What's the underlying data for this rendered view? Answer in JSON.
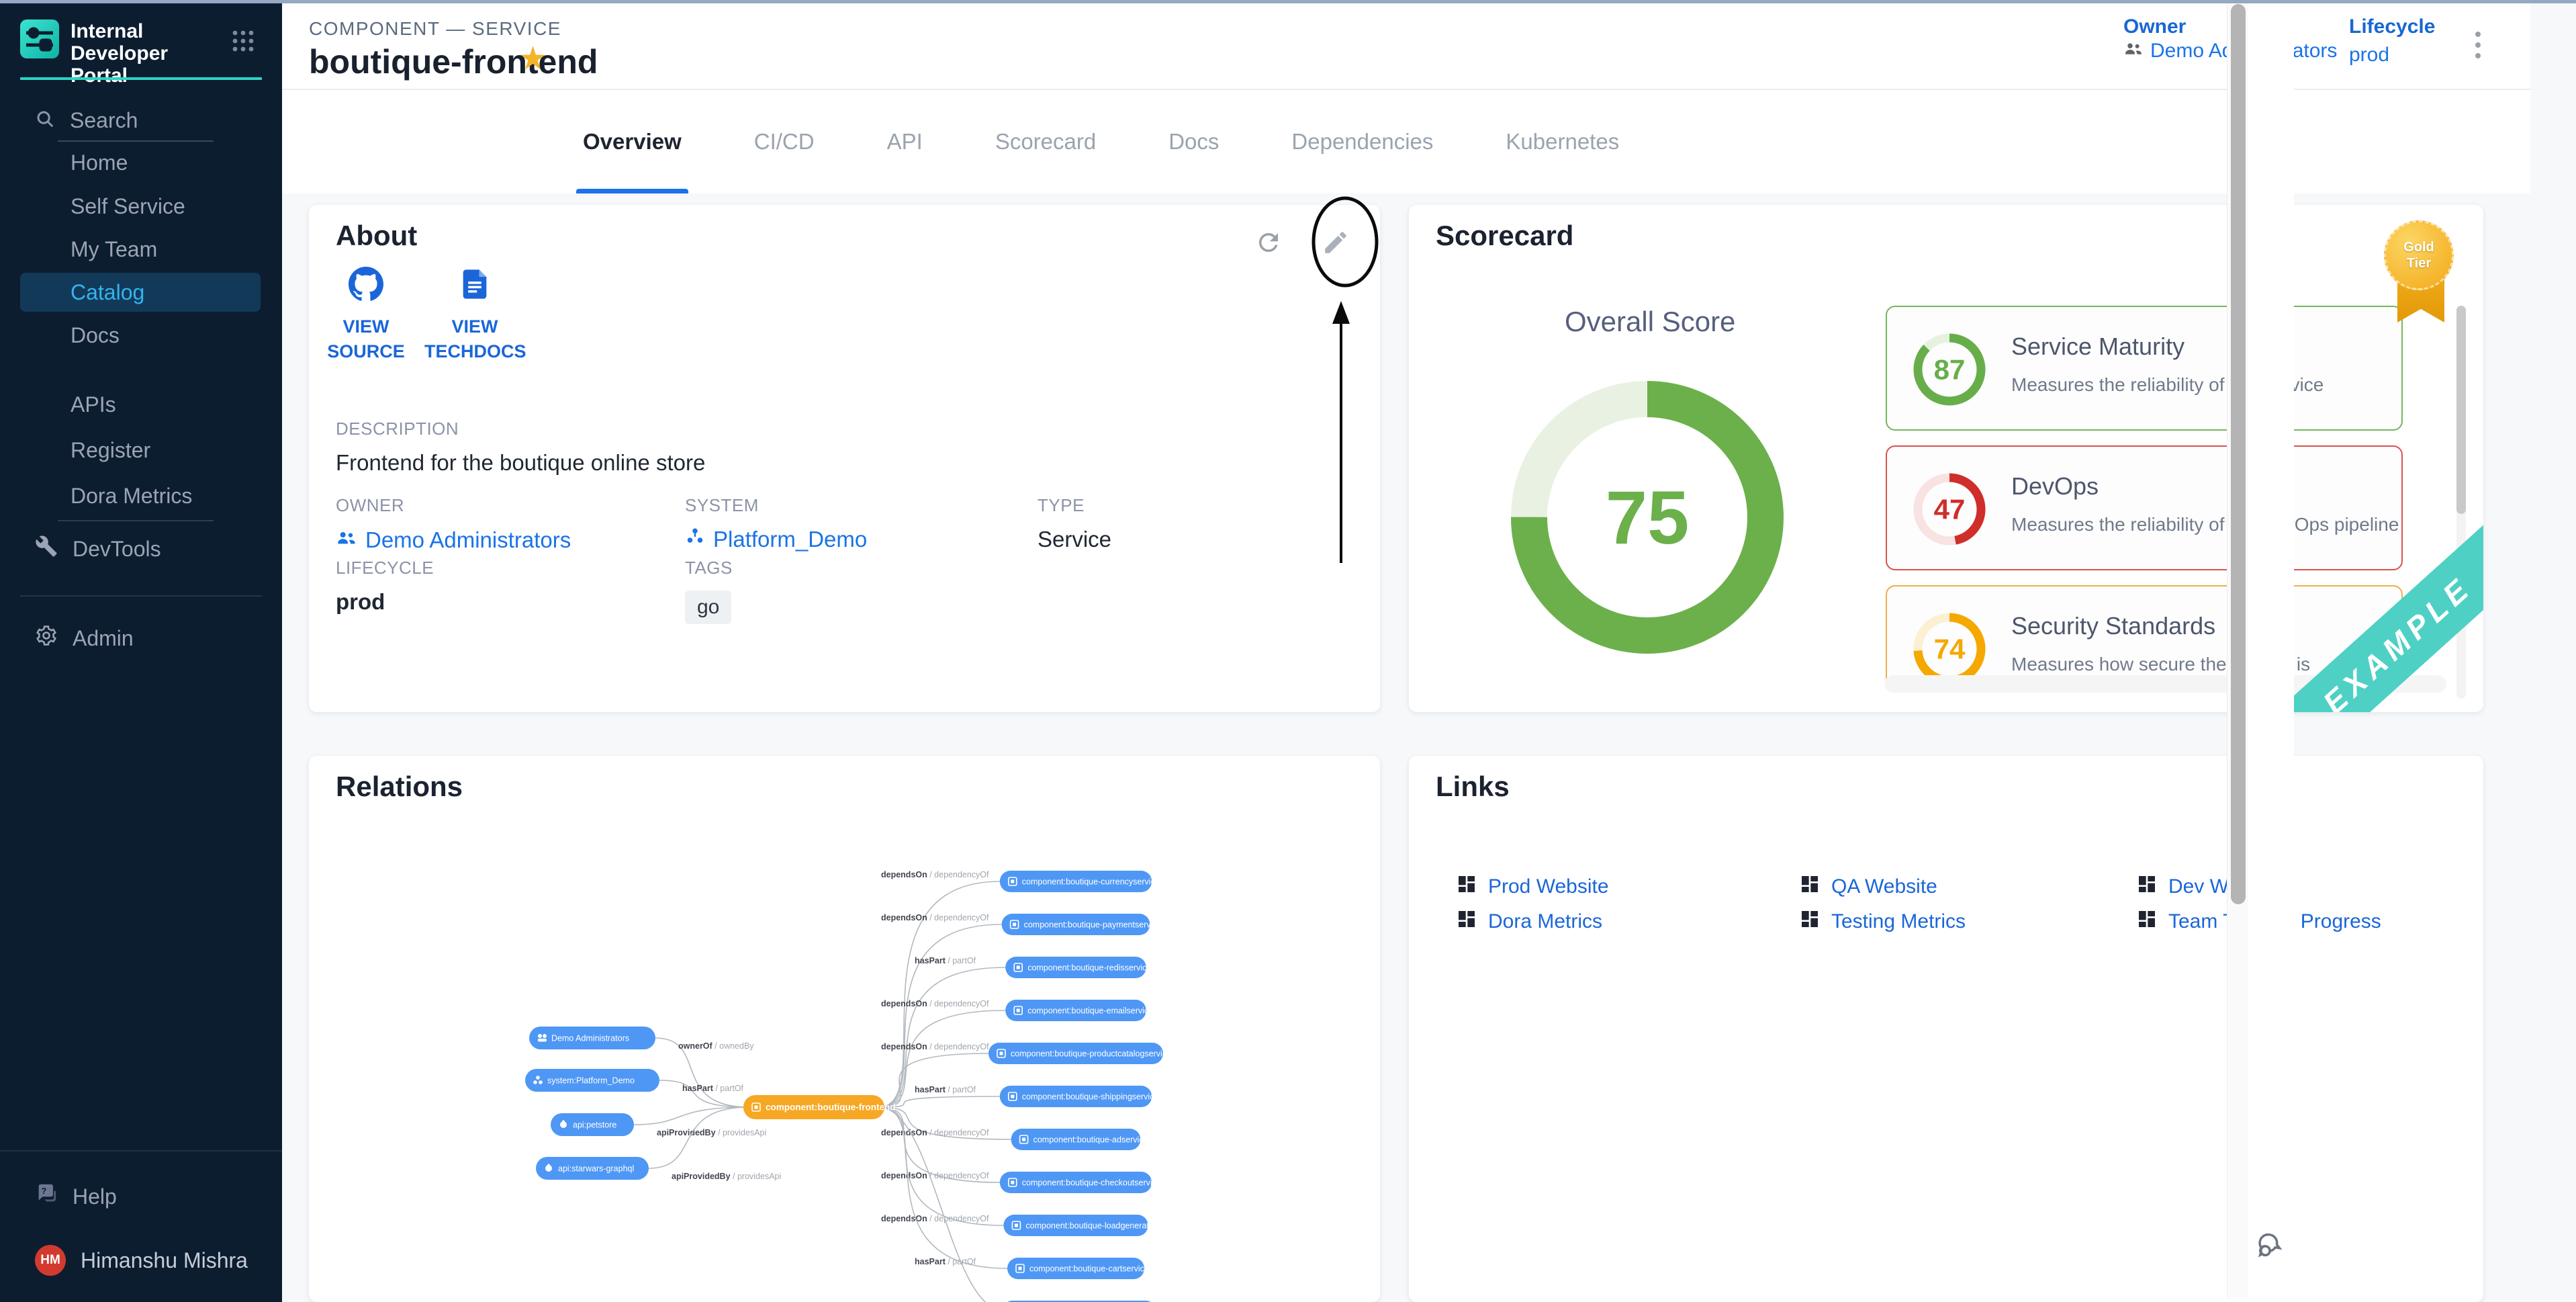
{
  "sidebar": {
    "title": "Internal Developer Portal",
    "search_label": "Search",
    "items": [
      {
        "label": "Home"
      },
      {
        "label": "Self Service"
      },
      {
        "label": "My Team"
      },
      {
        "label": "Catalog",
        "active": true
      },
      {
        "label": "Docs"
      },
      {
        "label": "APIs"
      },
      {
        "label": "Register"
      },
      {
        "label": "Dora Metrics"
      }
    ],
    "devtools_label": "DevTools",
    "admin_label": "Admin",
    "help_label": "Help",
    "user": {
      "initials": "HM",
      "name": "Himanshu Mishra"
    }
  },
  "header": {
    "breadcrumb": "COMPONENT — SERVICE",
    "title": "boutique-frontend",
    "owner_label": "Owner",
    "owner_value": "Demo Administrators",
    "lifecycle_label": "Lifecycle",
    "lifecycle_value": "prod"
  },
  "tabs": [
    {
      "label": "Overview",
      "active": true
    },
    {
      "label": "CI/CD"
    },
    {
      "label": "API"
    },
    {
      "label": "Scorecard"
    },
    {
      "label": "Docs"
    },
    {
      "label": "Dependencies"
    },
    {
      "label": "Kubernetes"
    }
  ],
  "about": {
    "title": "About",
    "view_source": "VIEW SOURCE",
    "view_techdocs": "VIEW TECHDOCS",
    "description_label": "DESCRIPTION",
    "description": "Frontend for the boutique online store",
    "owner_label": "OWNER",
    "owner": "Demo Administrators",
    "system_label": "SYSTEM",
    "system": "Platform_Demo",
    "type_label": "TYPE",
    "type": "Service",
    "lifecycle_label": "LIFECYCLE",
    "lifecycle": "prod",
    "tags_label": "TAGS",
    "tags": [
      "go"
    ]
  },
  "scorecard": {
    "title": "Scorecard",
    "badge": "Gold Tier",
    "overall_label": "Overall Score",
    "overall": {
      "score": 75,
      "color": "#6cb04c",
      "track": "#e9f2e2"
    },
    "metrics": [
      {
        "name": "Service Maturity",
        "score": 87,
        "description": "Measures the reliability of this service",
        "color": "#67ae4b",
        "track": "#e7f1df",
        "border": "#74b75c"
      },
      {
        "name": "DevOps",
        "score": 47,
        "description": "Measures the reliability of the DevOps pipeline",
        "color": "#cf2e2a",
        "track": "#f8e3e2",
        "border": "#d9534f"
      },
      {
        "name": "Security Standards",
        "score": 74,
        "description": "Measures how secure the service is",
        "color": "#f5a800",
        "track": "#fcf0d4",
        "border": "#f0ad4e"
      }
    ],
    "ribbon": "EXAMPLE"
  },
  "relations": {
    "title": "Relations",
    "center": "component:boutique-frontend",
    "left_nodes": [
      {
        "label": "Demo Administrators",
        "icon": "group",
        "relation": "ownerOf",
        "inverse": "ownedBy"
      },
      {
        "label": "system:Platform_Demo",
        "icon": "system",
        "relation": "hasPart",
        "inverse": "partOf"
      },
      {
        "label": "api:petstore",
        "icon": "api",
        "relation": "apiProvidedBy",
        "inverse": "providesApi"
      },
      {
        "label": "api:starwars-graphql",
        "icon": "api",
        "relation": "apiProvidedBy",
        "inverse": "providesApi"
      }
    ],
    "right_nodes": [
      {
        "label": "component:boutique-currencyservice",
        "relation": "dependsOn",
        "inverse": "dependencyOf"
      },
      {
        "label": "component:boutique-paymentservice",
        "relation": "dependsOn",
        "inverse": "dependencyOf"
      },
      {
        "label": "component:boutique-redisservice",
        "relation": "hasPart",
        "inverse": "partOf"
      },
      {
        "label": "component:boutique-emailservice",
        "relation": "dependsOn",
        "inverse": "dependencyOf"
      },
      {
        "label": "component:boutique-productcatalogservice",
        "relation": "dependsOn",
        "inverse": "dependencyOf"
      },
      {
        "label": "component:boutique-shippingservice",
        "relation": "hasPart",
        "inverse": "partOf"
      },
      {
        "label": "component:boutique-adservice",
        "relation": "dependsOn",
        "inverse": "dependencyOf"
      },
      {
        "label": "component:boutique-checkoutservice",
        "relation": "dependsOn",
        "inverse": "dependencyOf"
      },
      {
        "label": "component:boutique-loadgenerator",
        "relation": "dependsOn",
        "inverse": "dependencyOf"
      },
      {
        "label": "component:boutique-cartservice",
        "relation": "hasPart",
        "inverse": "partOf"
      }
    ]
  },
  "links": {
    "title": "Links",
    "items": [
      {
        "label": "Prod Website"
      },
      {
        "label": "QA Website"
      },
      {
        "label": "Dev Website"
      },
      {
        "label": "Dora Metrics"
      },
      {
        "label": "Testing Metrics"
      },
      {
        "label": "Team Training Progress"
      }
    ]
  }
}
